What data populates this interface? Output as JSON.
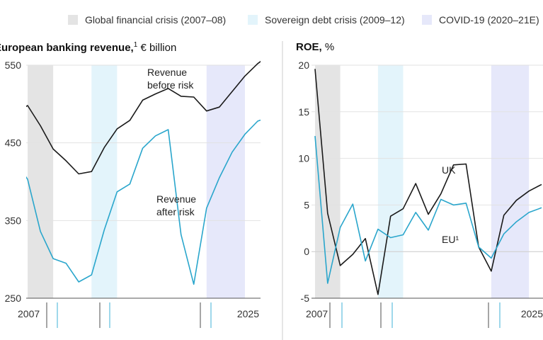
{
  "legend": {
    "items": [
      {
        "label": "Global financial crisis (2007–08)",
        "color": "#e4e4e4"
      },
      {
        "label": "Sovereign debt crisis (2009–12)",
        "color": "#e3f4fb"
      },
      {
        "label": "COVID-19 (2020–21E)",
        "color": "#e6e8fa"
      }
    ]
  },
  "panels": {
    "left": {
      "title_bold": "European banking revenue,",
      "title_sup": "1",
      "title_rest": " € billion"
    },
    "right": {
      "title_bold": "ROE,",
      "title_rest": " %"
    }
  },
  "colors": {
    "black_series": "#1a1a1a",
    "blue_series": "#2aa6cc",
    "axis": "#555555",
    "grid": "#e2e2e2"
  },
  "chart_data": [
    {
      "type": "line",
      "title": "European banking revenue, € billion",
      "x_tick_labels": [
        "2007",
        "2025"
      ],
      "xlim": [
        2007,
        2025
      ],
      "ylim": [
        250,
        550
      ],
      "y_ticks": [
        250,
        350,
        450,
        550
      ],
      "shaded_periods": [
        {
          "start": 2007,
          "end": 2009
        },
        {
          "start": 2012,
          "end": 2014
        },
        {
          "start": 2021,
          "end": 2024
        }
      ],
      "series": [
        {
          "name": "Revenue before risk",
          "label_lines": [
            "Revenue",
            "before risk"
          ],
          "color": "#1a1a1a",
          "x": [
            2006,
            2007,
            2008,
            2009,
            2010,
            2011,
            2012,
            2013,
            2014,
            2015,
            2016,
            2017,
            2018,
            2019,
            2020,
            2021,
            2022,
            2023,
            2024,
            2025,
            2026
          ],
          "y": [
            487,
            498,
            472,
            442,
            427,
            410,
            413,
            444,
            468,
            479,
            505,
            513,
            520,
            510,
            509,
            491,
            496,
            516,
            536,
            552,
            564
          ]
        },
        {
          "name": "Revenue after risk",
          "label_lines": [
            "Revenue",
            "after risk"
          ],
          "color": "#2aa6cc",
          "x": [
            2006,
            2007,
            2008,
            2009,
            2010,
            2011,
            2012,
            2013,
            2014,
            2015,
            2016,
            2017,
            2018,
            2019,
            2020,
            2021,
            2022,
            2023,
            2024,
            2025,
            2026
          ],
          "y": [
            428,
            403,
            336,
            301,
            295,
            271,
            280,
            338,
            387,
            397,
            443,
            459,
            467,
            332,
            268,
            366,
            405,
            438,
            461,
            478,
            484
          ]
        }
      ]
    },
    {
      "type": "line",
      "title": "ROE, %",
      "x_tick_labels": [
        "2007",
        "2025"
      ],
      "xlim": [
        2007,
        2025
      ],
      "ylim": [
        -5,
        20
      ],
      "y_ticks": [
        -5,
        0,
        5,
        10,
        15,
        20
      ],
      "shaded_periods": [
        {
          "start": 2007,
          "end": 2009
        },
        {
          "start": 2012,
          "end": 2014
        },
        {
          "start": 2021,
          "end": 2024
        }
      ],
      "series": [
        {
          "name": "UK",
          "label_lines": [
            "UK"
          ],
          "color": "#1a1a1a",
          "x": [
            2007,
            2008,
            2009,
            2010,
            2011,
            2012,
            2013,
            2014,
            2015,
            2016,
            2017,
            2018,
            2019,
            2020,
            2021,
            2022,
            2023,
            2024,
            2025
          ],
          "y": [
            19.6,
            4.1,
            -1.5,
            -0.3,
            1.4,
            -4.6,
            3.8,
            4.6,
            7.3,
            4.0,
            6.2,
            9.3,
            9.4,
            0.5,
            -2.1,
            3.9,
            5.5,
            6.5,
            7.2
          ]
        },
        {
          "name": "EU",
          "label_lines": [
            "EU¹"
          ],
          "color": "#2aa6cc",
          "x": [
            2007,
            2008,
            2009,
            2010,
            2011,
            2012,
            2013,
            2014,
            2015,
            2016,
            2017,
            2018,
            2019,
            2020,
            2021,
            2022,
            2023,
            2024,
            2025
          ],
          "y": [
            12.4,
            -3.4,
            2.6,
            5.1,
            -1.0,
            2.4,
            1.5,
            1.8,
            4.2,
            2.3,
            5.6,
            5.0,
            5.2,
            0.5,
            -0.7,
            1.9,
            3.2,
            4.2,
            4.7
          ]
        }
      ]
    }
  ]
}
